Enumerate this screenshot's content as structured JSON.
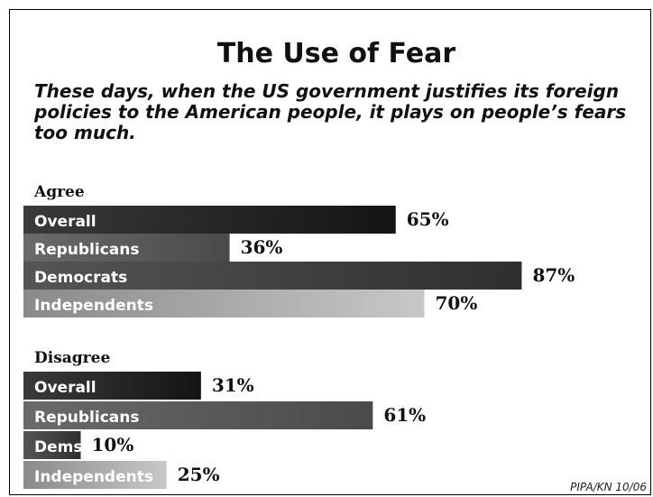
{
  "chart_data": {
    "type": "bar",
    "orientation": "horizontal",
    "title": "The Use of Fear",
    "question_lines": [
      "These days, when the US government justifies its foreign",
      "policies to the American people, it plays on people’s fears",
      "too much."
    ],
    "groups": [
      {
        "name": "Agree",
        "categories": [
          "Overall",
          "Republicans",
          "Democrats",
          "Independents"
        ],
        "values": [
          65,
          36,
          87,
          70
        ],
        "value_labels": [
          "65%",
          "36%",
          "87%",
          "70%"
        ]
      },
      {
        "name": "Disagree",
        "categories": [
          "Overall",
          "Republicans",
          "Dems",
          "Independents"
        ],
        "values": [
          31,
          61,
          10,
          25
        ],
        "value_labels": [
          "31%",
          "61%",
          "10%",
          "25%"
        ]
      }
    ],
    "xlim": [
      0,
      100
    ],
    "grid": false,
    "legend": "none",
    "source": "PIPA/KN 10/06"
  },
  "colors": {
    "overall": "#1b1b1b",
    "republicans": "#5a5a5a",
    "democrats": "#3f3f3f",
    "independents_start": "#7a7a7a",
    "independents_end": "#c4c4c4"
  }
}
